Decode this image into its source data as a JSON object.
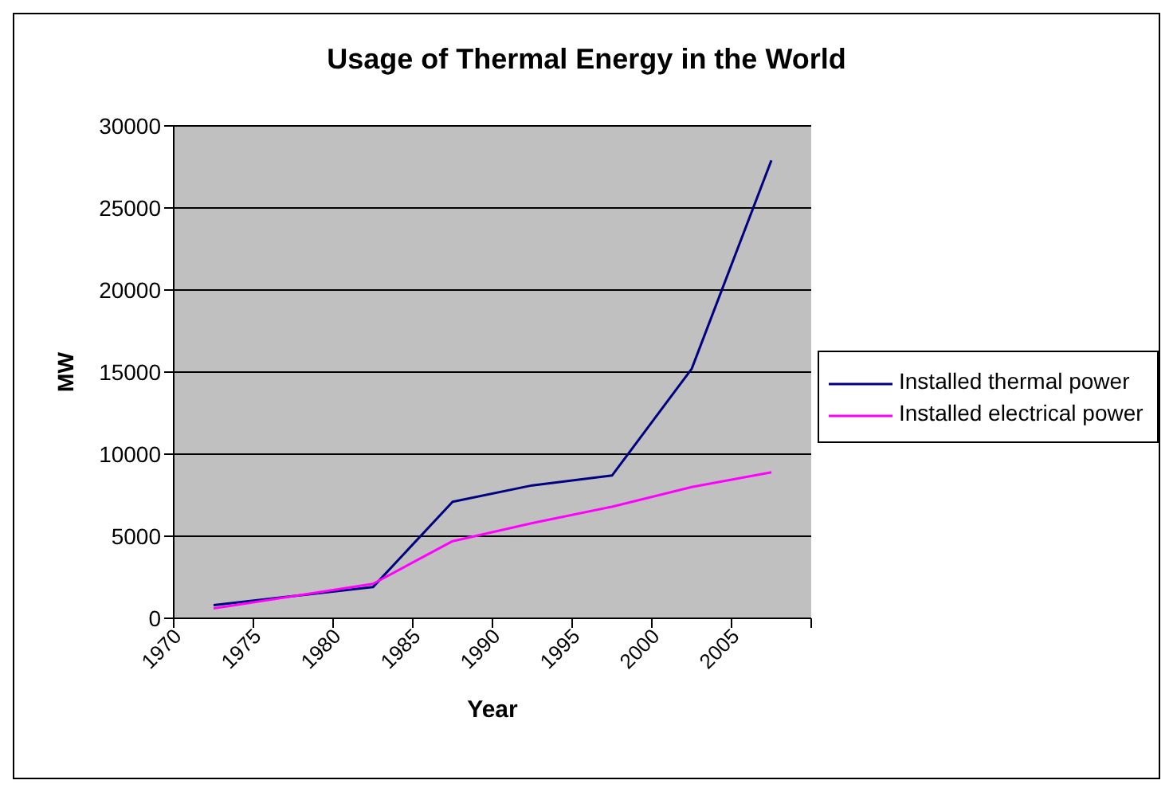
{
  "chart_data": {
    "type": "line",
    "title": "Usage of Thermal Energy in the World",
    "xlabel": "Year",
    "ylabel": "MW",
    "x": [
      1972.5,
      1982.5,
      1987.5,
      1992.5,
      1997.5,
      2002.5,
      2007.5
    ],
    "series": [
      {
        "name": "Installed thermal power",
        "color": "#000080",
        "values": [
          800,
          1900,
          7100,
          8100,
          8700,
          15200,
          27900
        ]
      },
      {
        "name": "Installed electrical power",
        "color": "#ff00ff",
        "values": [
          600,
          2100,
          4700,
          5800,
          6800,
          8000,
          8900
        ]
      }
    ],
    "xlim": [
      1970,
      2010
    ],
    "xticks": [
      1970,
      1975,
      1980,
      1985,
      1990,
      1995,
      2000,
      2005,
      {
        "value": 2010,
        "label": null
      }
    ],
    "ylim": [
      0,
      30000
    ],
    "yticks": [
      0,
      5000,
      10000,
      15000,
      20000,
      25000,
      30000
    ],
    "grid": "y",
    "legend": "right",
    "marker": "none",
    "line_style": "solid"
  }
}
